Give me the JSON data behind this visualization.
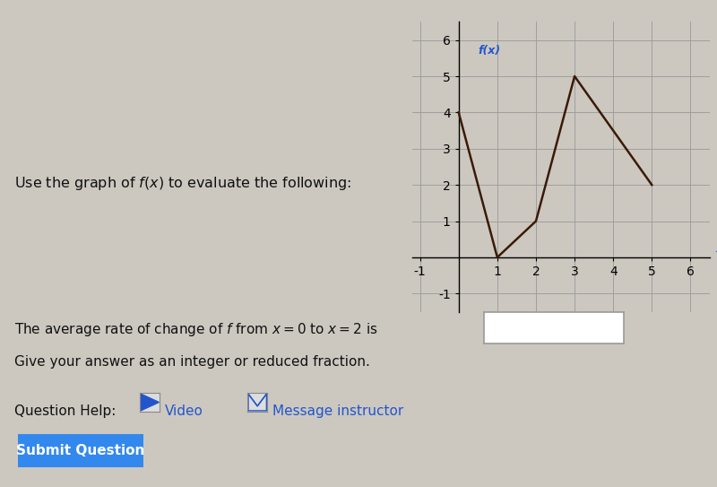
{
  "page_bg": "#ccc8c0",
  "title_bar_color": "#e8a0a8",
  "graph_x": [
    0,
    1,
    2,
    3,
    5
  ],
  "graph_y": [
    4,
    0,
    1,
    5,
    2
  ],
  "graph_color": "#3a1a08",
  "graph_linewidth": 1.8,
  "xlim": [
    -1.2,
    6.5
  ],
  "ylim": [
    -1.5,
    6.5
  ],
  "xlabel": "x",
  "ylabel": "f(x)",
  "ylabel_color": "#2255cc",
  "xlabel_color": "#2255cc",
  "xticks": [
    -1,
    1,
    2,
    3,
    4,
    5,
    6
  ],
  "yticks": [
    -1,
    1,
    2,
    3,
    4,
    5,
    6
  ],
  "main_text": "Use the graph of $f(x)$ to evaluate the following:",
  "question_text": "The average rate of change of $f$ from $x = 0$ to $x = 2$ is",
  "give_text": "Give your answer as an integer or reduced fraction.",
  "help_label": "Question Help:",
  "video_text": " Video",
  "msg_text": " Message instructor",
  "submit_text": "Submit Question",
  "graph_bg": "#ccc8c0",
  "grid_color": "#999999",
  "answer_box_color": "#ffffff",
  "answer_box_edge": "#999999",
  "submit_bg": "#3388ee",
  "submit_text_color": "#ffffff",
  "text_color": "#111111",
  "link_color": "#2255cc"
}
